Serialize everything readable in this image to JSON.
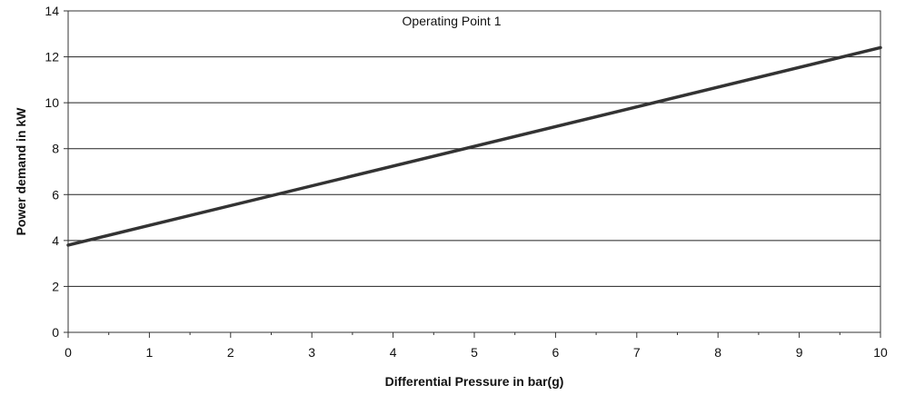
{
  "chart_data": {
    "type": "line",
    "title": "Operating Point 1",
    "xlabel": "Differential Pressure in bar(g)",
    "ylabel": "Power demand in kW",
    "xlim": [
      0,
      10
    ],
    "ylim": [
      0,
      14
    ],
    "x_ticks": [
      0,
      1,
      2,
      3,
      4,
      5,
      6,
      7,
      8,
      9,
      10
    ],
    "y_ticks": [
      0,
      2,
      4,
      6,
      8,
      10,
      12,
      14
    ],
    "grid": "horizontal",
    "series": [
      {
        "name": "Power demand",
        "x": [
          0,
          10
        ],
        "y": [
          3.8,
          12.4
        ],
        "color": "#333333"
      }
    ]
  }
}
